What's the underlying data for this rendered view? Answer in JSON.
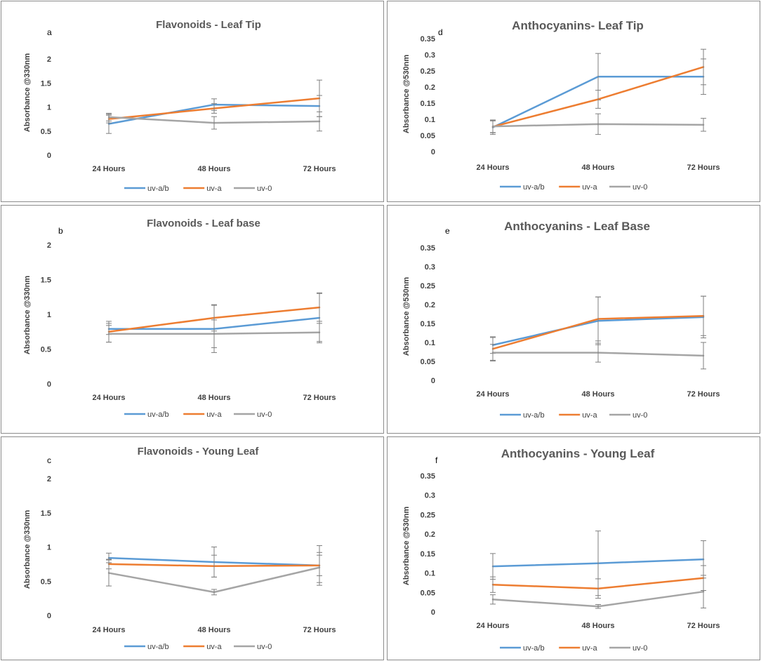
{
  "legend_labels": [
    "uv-a/b",
    "uv-a",
    "uv-0"
  ],
  "colors": {
    "uv-a/b": "#5b9bd5",
    "uv-a": "#ed7d31",
    "uv-0": "#a5a5a5",
    "error_bar": "#7f7f7f"
  },
  "chart_data": [
    {
      "type": "line",
      "panel_label": "a",
      "title": "Flavonoids  - Leaf Tip",
      "ylabel": "Absorbance @330nm",
      "xlabel": "",
      "categories": [
        "24 Hours",
        "48 Hours",
        "72 Hours"
      ],
      "ylim": [
        0,
        2
      ],
      "yticks": [
        "0",
        "0.5",
        "1",
        "1.5",
        "2"
      ],
      "series": [
        {
          "name": "uv-a/b",
          "values": [
            0.65,
            1.05,
            1.02
          ],
          "err": [
            0.2,
            0.12,
            0.22
          ]
        },
        {
          "name": "uv-a",
          "values": [
            0.75,
            0.97,
            1.18
          ],
          "err": [
            0.08,
            0.1,
            0.38
          ]
        },
        {
          "name": "uv-0",
          "values": [
            0.79,
            0.67,
            0.7
          ],
          "err": [
            0.08,
            0.13,
            0.2
          ]
        }
      ]
    },
    {
      "type": "line",
      "panel_label": "d",
      "title": "Anthocyanins- Leaf Tip",
      "ylabel": "Absorbance @530nm",
      "xlabel": "",
      "categories": [
        "24 Hours",
        "48 Hours",
        "72 Hours"
      ],
      "ylim": [
        0,
        0.35
      ],
      "yticks": [
        "0",
        "0.05",
        "0.1",
        "0.15",
        "0.2",
        "0.25",
        "0.3",
        "0.35"
      ],
      "series": [
        {
          "name": "uv-a/b",
          "values": [
            0.075,
            0.232,
            0.232
          ],
          "err": [
            0.022,
            0.072,
            0.055
          ]
        },
        {
          "name": "uv-a",
          "values": [
            0.077,
            0.162,
            0.262
          ],
          "err": [
            0.018,
            0.028,
            0.055
          ]
        },
        {
          "name": "uv-0",
          "values": [
            0.078,
            0.085,
            0.083
          ],
          "err": [
            0.02,
            0.032,
            0.02
          ]
        }
      ]
    },
    {
      "type": "line",
      "panel_label": "b",
      "title": "Flavonoids - Leaf base",
      "ylabel": "Absorbance @330nm",
      "xlabel": "",
      "categories": [
        "24 Hours",
        "48 Hours",
        "72 Hours"
      ],
      "ylim": [
        0,
        2
      ],
      "yticks": [
        "0",
        "0.5",
        "1",
        "1.5",
        "2"
      ],
      "series": [
        {
          "name": "uv-a/b",
          "values": [
            0.79,
            0.79,
            0.95
          ],
          "err": [
            0.08,
            0.34,
            0.36
          ]
        },
        {
          "name": "uv-a",
          "values": [
            0.75,
            0.95,
            1.1
          ],
          "err": [
            0.15,
            0.19,
            0.2
          ]
        },
        {
          "name": "uv-0",
          "values": [
            0.72,
            0.72,
            0.74
          ],
          "err": [
            0.12,
            0.2,
            0.13
          ]
        }
      ]
    },
    {
      "type": "line",
      "panel_label": "e",
      "title": "Anthocyanins - Leaf Base",
      "ylabel": "Absorbance @530nm",
      "xlabel": "",
      "categories": [
        "24 Hours",
        "48 Hours",
        "72 Hours"
      ],
      "ylim": [
        0,
        0.35
      ],
      "yticks": [
        "0",
        "0.05",
        "0.1",
        "0.15",
        "0.2",
        "0.25",
        "0.3",
        "0.35"
      ],
      "series": [
        {
          "name": "uv-a/b",
          "values": [
            0.093,
            0.157,
            0.167
          ],
          "err": [
            0.022,
            0.063,
            0.055
          ]
        },
        {
          "name": "uv-a",
          "values": [
            0.083,
            0.162,
            0.17
          ],
          "err": [
            0.03,
            0.058,
            0.052
          ]
        },
        {
          "name": "uv-0",
          "values": [
            0.073,
            0.073,
            0.065
          ],
          "err": [
            0.022,
            0.025,
            0.035
          ]
        }
      ]
    },
    {
      "type": "line",
      "panel_label": "c",
      "title": "Flavonoids - Young Leaf",
      "ylabel": "Absorbance @330nm",
      "xlabel": "",
      "categories": [
        "24 Hours",
        "48 Hours",
        "72 Hours"
      ],
      "ylim": [
        0,
        2
      ],
      "yticks": [
        "0",
        "0.5",
        "1",
        "1.5",
        "2"
      ],
      "series": [
        {
          "name": "uv-a/b",
          "values": [
            0.84,
            0.78,
            0.73
          ],
          "err": [
            0.07,
            0.22,
            0.29
          ]
        },
        {
          "name": "uv-a",
          "values": [
            0.75,
            0.72,
            0.73
          ],
          "err": [
            0.07,
            0.16,
            0.15
          ]
        },
        {
          "name": "uv-0",
          "values": [
            0.62,
            0.34,
            0.7
          ],
          "err": [
            0.19,
            0.04,
            0.22
          ]
        }
      ]
    },
    {
      "type": "line",
      "panel_label": "f",
      "title": "Anthocyanins - Young Leaf",
      "ylabel": "Absorbance @530nm",
      "xlabel": "",
      "categories": [
        "24 Hours",
        "48 Hours",
        "72 Hours"
      ],
      "ylim": [
        0,
        0.35
      ],
      "yticks": [
        "0",
        "0.05",
        "0.1",
        "0.15",
        "0.2",
        "0.25",
        "0.3",
        "0.35"
      ],
      "series": [
        {
          "name": "uv-a/b",
          "values": [
            0.117,
            0.125,
            0.135
          ],
          "err": [
            0.033,
            0.083,
            0.048
          ]
        },
        {
          "name": "uv-a",
          "values": [
            0.07,
            0.06,
            0.087
          ],
          "err": [
            0.02,
            0.025,
            0.032
          ]
        },
        {
          "name": "uv-0",
          "values": [
            0.032,
            0.014,
            0.052
          ],
          "err": [
            0.012,
            0.005,
            0.042
          ]
        }
      ]
    }
  ]
}
